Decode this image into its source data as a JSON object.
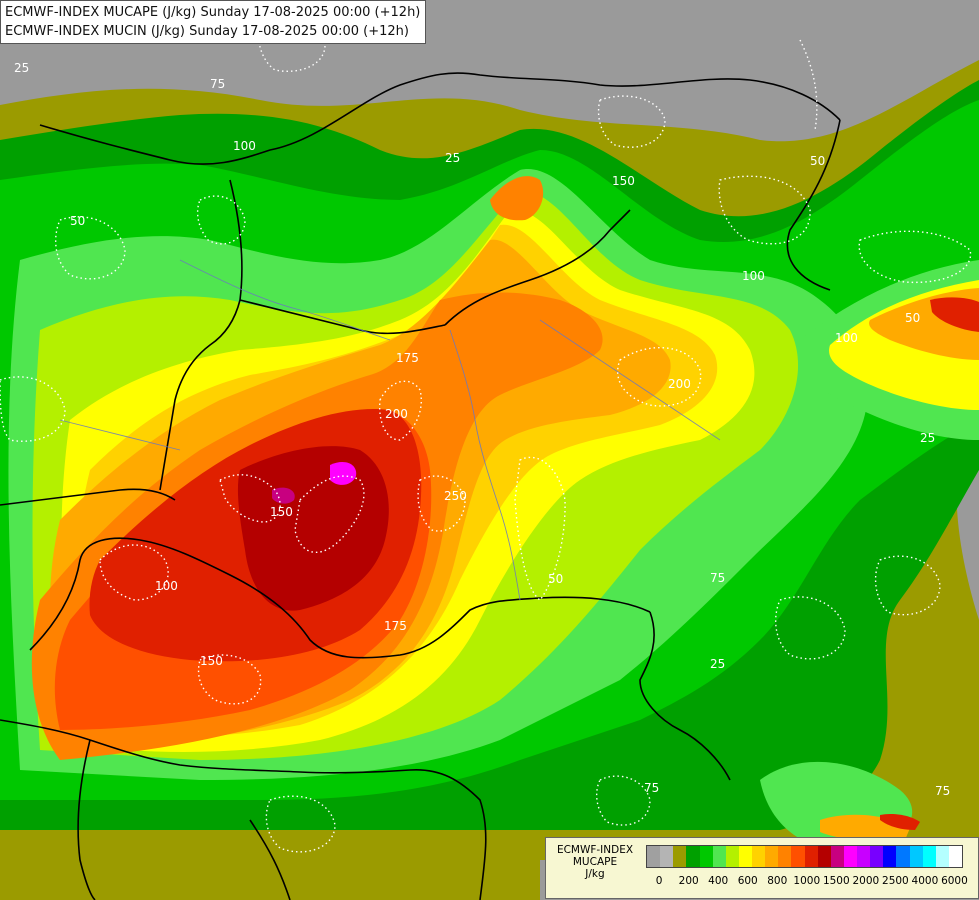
{
  "header": {
    "line1": "ECMWF-INDEX MUCAPE (J/kg) Sunday 17-08-2025 00:00 (+12h)",
    "line2": "ECMWF-INDEX MUCIN (J/kg) Sunday 17-08-2025 00:00 (+12h)"
  },
  "legend": {
    "title_line1": "ECMWF-INDEX",
    "title_line2": "MUCAPE",
    "title_line3": "J/kg",
    "colors": [
      "#a0a0a0",
      "#b4b4b4",
      "#9b9b00",
      "#00a000",
      "#00c800",
      "#50e650",
      "#b4f000",
      "#ffff00",
      "#ffd200",
      "#ffaa00",
      "#ff8200",
      "#ff5000",
      "#e02000",
      "#b40000",
      "#c80080",
      "#ff00ff",
      "#c800ff",
      "#7800ff",
      "#0000ff",
      "#0078ff",
      "#00c8ff",
      "#00ffff",
      "#b4ffff",
      "#ffffff"
    ],
    "tick_labels": [
      "0",
      "200",
      "400",
      "600",
      "800",
      "1000",
      "1500",
      "2000",
      "2500",
      "4000",
      "6000"
    ]
  },
  "contour_labels": [
    "25",
    "25",
    "25",
    "25",
    "50",
    "50",
    "50",
    "50",
    "75",
    "75",
    "75",
    "75",
    "100",
    "100",
    "100",
    "100",
    "150",
    "150",
    "150",
    "175",
    "175",
    "200",
    "200",
    "250"
  ]
}
